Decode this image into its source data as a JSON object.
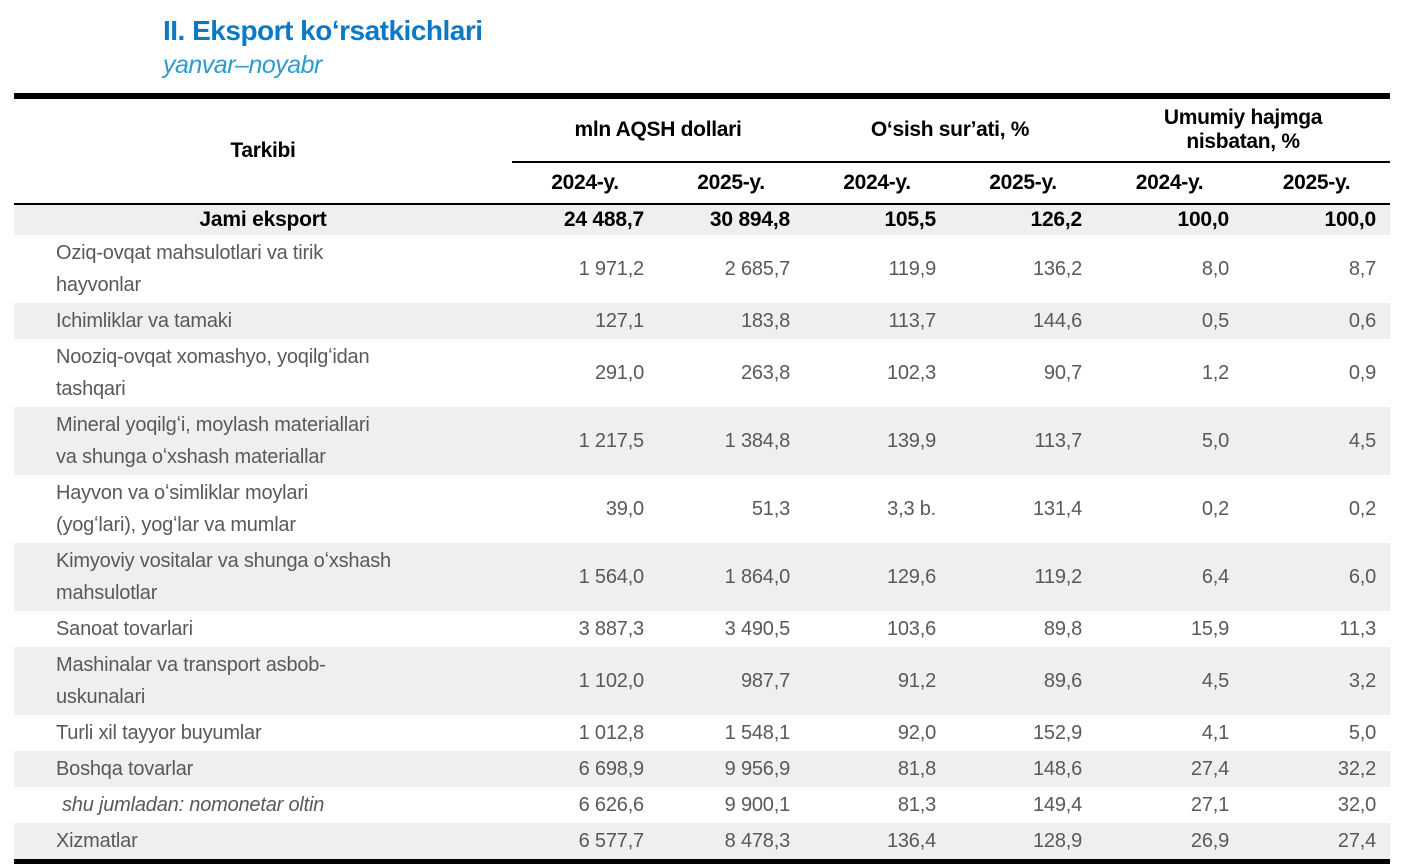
{
  "title": "II. Eksport koʻrsatkichlari",
  "subtitle": "yanvar–noyabr",
  "table": {
    "col_header": "Tarkibi",
    "group_headers": [
      "mln AQSH dollari",
      "Oʻsish surʼati, %",
      "Umumiy hajmga nisbatan, %"
    ],
    "year_headers": [
      "2024-y.",
      "2025-y.",
      "2024-y.",
      "2025-y.",
      "2024-y.",
      "2025-y."
    ],
    "rows": [
      {
        "label": "Jami eksport",
        "values": [
          "24 488,7",
          "30 894,8",
          "105,5",
          "126,2",
          "100,0",
          "100,0"
        ],
        "total": true,
        "shaded": true
      },
      {
        "label": "Oziq-ovqat mahsulotlari va tirik hayvonlar",
        "values": [
          "1 971,2",
          "2 685,7",
          "119,9",
          "136,2",
          "8,0",
          "8,7"
        ],
        "shaded": false
      },
      {
        "label": "Ichimliklar va tamaki",
        "values": [
          "127,1",
          "183,8",
          "113,7",
          "144,6",
          "0,5",
          "0,6"
        ],
        "shaded": true
      },
      {
        "label": "Nooziq-ovqat xomashyo, yoqilgʻidan tashqari",
        "values": [
          "291,0",
          "263,8",
          "102,3",
          "90,7",
          "1,2",
          "0,9"
        ],
        "shaded": false
      },
      {
        "label": "Mineral yoqilgʻi, moylash materiallari va shunga oʻxshash materiallar",
        "values": [
          "1 217,5",
          "1 384,8",
          "139,9",
          "113,7",
          "5,0",
          "4,5"
        ],
        "shaded": true
      },
      {
        "label": "Hayvon va oʻsimliklar moylari (yogʻlari), yogʻlar va mumlar",
        "values": [
          "39,0",
          "51,3",
          "3,3 b.",
          "131,4",
          "0,2",
          "0,2"
        ],
        "shaded": false
      },
      {
        "label": "Kimyoviy vositalar va shunga oʻxshash mahsulotlar",
        "values": [
          "1 564,0",
          "1 864,0",
          "129,6",
          "119,2",
          "6,4",
          "6,0"
        ],
        "shaded": true
      },
      {
        "label": "Sanoat tovarlari",
        "values": [
          "3 887,3",
          "3 490,5",
          "103,6",
          "89,8",
          "15,9",
          "11,3"
        ],
        "shaded": false
      },
      {
        "label": "Mashinalar va transport asbob-uskunalari",
        "values": [
          "1 102,0",
          "987,7",
          "91,2",
          "89,6",
          "4,5",
          "3,2"
        ],
        "shaded": true
      },
      {
        "label": "Turli xil tayyor buyumlar",
        "values": [
          "1 012,8",
          "1 548,1",
          "92,0",
          "152,9",
          "4,1",
          "5,0"
        ],
        "shaded": false
      },
      {
        "label": "Boshqa tovarlar",
        "values": [
          "6 698,9",
          "9 956,9",
          "81,8",
          "148,6",
          "27,4",
          "32,2"
        ],
        "shaded": true
      },
      {
        "label": "shu jumladan: nomonetar oltin",
        "values": [
          "6 626,6",
          "9 900,1",
          "81,3",
          "149,4",
          "27,1",
          "32,0"
        ],
        "italic": true,
        "shaded": false
      },
      {
        "label": "Xizmatlar",
        "values": [
          "6 577,7",
          "8 478,3",
          "136,4",
          "128,9",
          "26,9",
          "27,4"
        ],
        "shaded": true
      }
    ]
  },
  "colors": {
    "title_blue": "#0c79c7",
    "subtitle_blue": "#2d9ad3",
    "row_shade": "#efefef",
    "data_text": "#595959",
    "header_text": "#000000",
    "rule_black": "#000000"
  }
}
